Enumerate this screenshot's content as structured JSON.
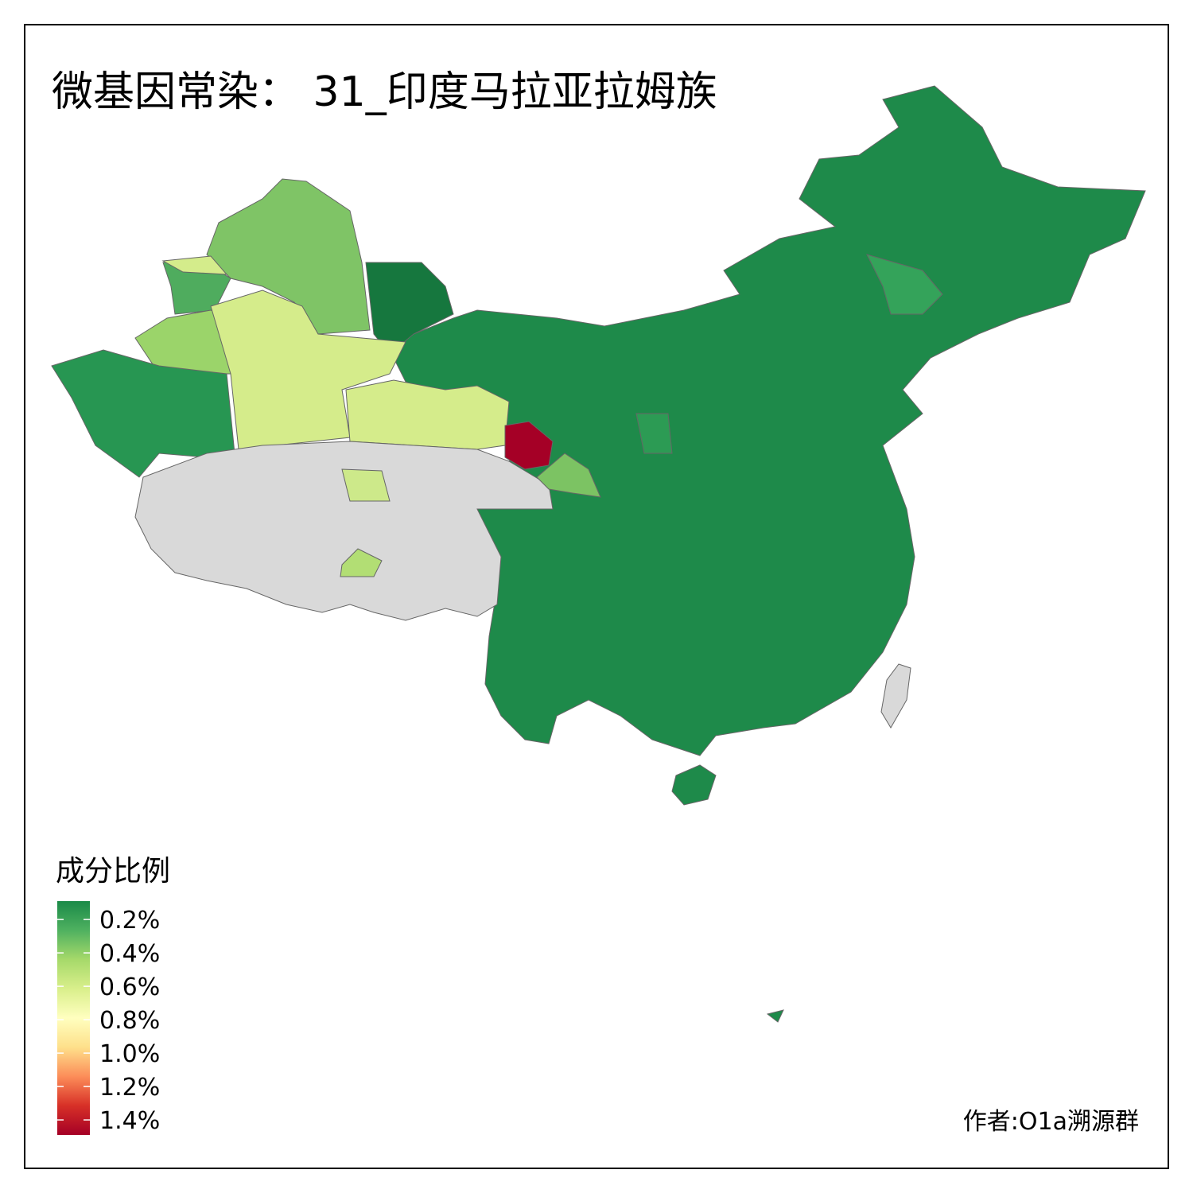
{
  "title": "微基因常染： 31_印度马拉亚拉姆族",
  "legend": {
    "title": "成分比例",
    "lim": [
      0.09,
      1.49
    ],
    "ticks": [
      {
        "value": 0.2,
        "label": "0.2%"
      },
      {
        "value": 0.4,
        "label": "0.4%"
      },
      {
        "value": 0.6,
        "label": "0.6%"
      },
      {
        "value": 0.8,
        "label": "0.8%"
      },
      {
        "value": 1.0,
        "label": "1.0%"
      },
      {
        "value": 1.2,
        "label": "1.2%"
      },
      {
        "value": 1.4,
        "label": "1.4%"
      }
    ],
    "colors": [
      "#1a8a48",
      "#4fb160",
      "#a6d96a",
      "#d9ef8b",
      "#ffffbf",
      "#fee08b",
      "#fc8d59",
      "#d73027",
      "#a50026"
    ]
  },
  "credit": "作者:O1a溯源群"
}
